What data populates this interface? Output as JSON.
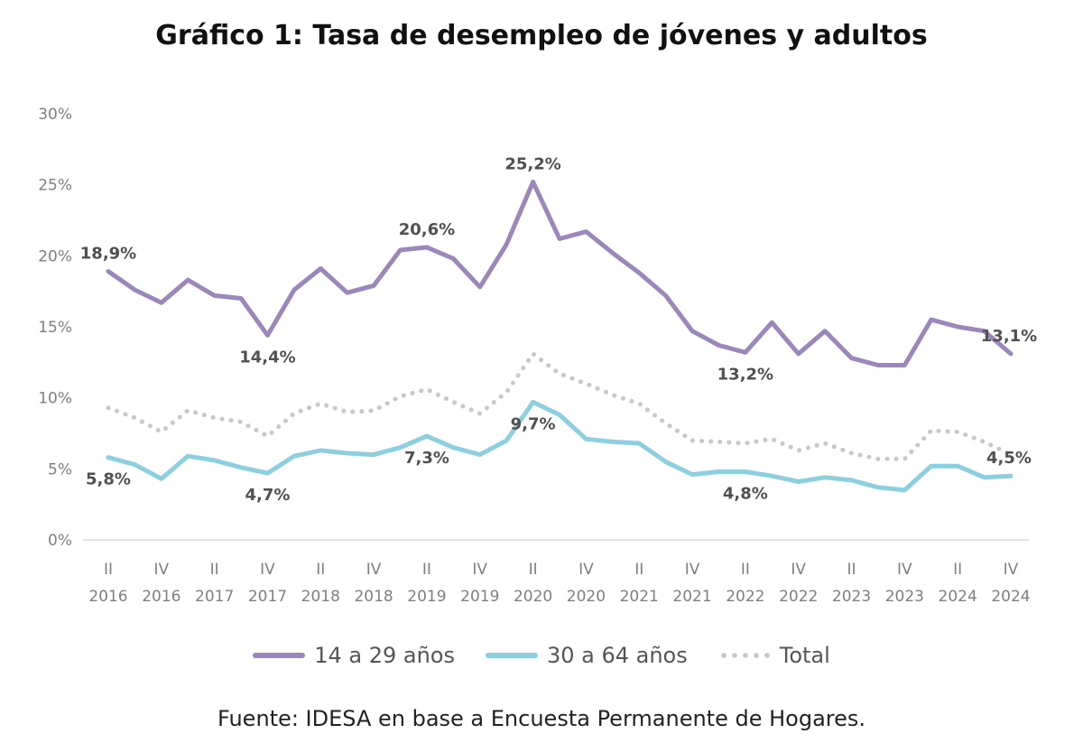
{
  "chart_data": {
    "type": "line",
    "title": "Gráfico 1: Tasa de desempleo de jóvenes y adultos",
    "xlabel": "",
    "ylabel": "",
    "ylim": [
      0,
      30
    ],
    "yticks": [
      "0%",
      "5%",
      "10%",
      "15%",
      "20%",
      "25%",
      "30%"
    ],
    "ytick_values": [
      0,
      5,
      10,
      15,
      20,
      25,
      30
    ],
    "x": [
      "II 2016",
      "III 2016",
      "IV 2016",
      "I 2017",
      "II 2017",
      "III 2017",
      "IV 2017",
      "I 2018",
      "II 2018",
      "III 2018",
      "IV 2018",
      "I 2019",
      "II 2019",
      "III 2019",
      "IV 2019",
      "I 2020",
      "II 2020",
      "III 2020",
      "IV 2020",
      "I 2021",
      "II 2021",
      "III 2021",
      "IV 2021",
      "I 2022",
      "II 2022",
      "III 2022",
      "IV 2022",
      "I 2023",
      "II 2023",
      "III 2023",
      "IV 2023",
      "I 2024",
      "II 2024",
      "III 2024",
      "IV 2024"
    ],
    "xticks": [
      {
        "idx": 0,
        "q": "II",
        "year": "2016"
      },
      {
        "idx": 2,
        "q": "IV",
        "year": "2016"
      },
      {
        "idx": 4,
        "q": "II",
        "year": "2017"
      },
      {
        "idx": 6,
        "q": "IV",
        "year": "2017"
      },
      {
        "idx": 8,
        "q": "II",
        "year": "2018"
      },
      {
        "idx": 10,
        "q": "IV",
        "year": "2018"
      },
      {
        "idx": 12,
        "q": "II",
        "year": "2019"
      },
      {
        "idx": 14,
        "q": "IV",
        "year": "2019"
      },
      {
        "idx": 16,
        "q": "II",
        "year": "2020"
      },
      {
        "idx": 18,
        "q": "IV",
        "year": "2020"
      },
      {
        "idx": 20,
        "q": "II",
        "year": "2021"
      },
      {
        "idx": 22,
        "q": "IV",
        "year": "2021"
      },
      {
        "idx": 24,
        "q": "II",
        "year": "2022"
      },
      {
        "idx": 26,
        "q": "IV",
        "year": "2022"
      },
      {
        "idx": 28,
        "q": "II",
        "year": "2023"
      },
      {
        "idx": 30,
        "q": "IV",
        "year": "2023"
      },
      {
        "idx": 32,
        "q": "II",
        "year": "2024"
      },
      {
        "idx": 34,
        "q": "IV",
        "year": "2024"
      }
    ],
    "series": [
      {
        "name": "14 a 29 años",
        "color": "#9b87b9",
        "style": "solid",
        "values": [
          18.9,
          17.6,
          16.7,
          18.3,
          17.2,
          17.0,
          14.4,
          17.6,
          19.1,
          17.4,
          17.9,
          20.4,
          20.6,
          19.8,
          17.8,
          20.8,
          25.2,
          21.2,
          21.7,
          20.2,
          18.8,
          17.2,
          14.7,
          13.7,
          13.2,
          15.3,
          13.1,
          14.7,
          12.8,
          12.3,
          12.3,
          15.5,
          15.0,
          14.7,
          13.1
        ]
      },
      {
        "name": "30 a 64 años",
        "color": "#8ccfdf",
        "style": "solid",
        "values": [
          5.8,
          5.3,
          4.3,
          5.9,
          5.6,
          5.1,
          4.7,
          5.9,
          6.3,
          6.1,
          6.0,
          6.5,
          7.3,
          6.5,
          6.0,
          7.0,
          9.7,
          8.8,
          7.1,
          6.9,
          6.8,
          5.5,
          4.6,
          4.8,
          4.8,
          4.5,
          4.1,
          4.4,
          4.2,
          3.7,
          3.5,
          5.2,
          5.2,
          4.4,
          4.5
        ]
      },
      {
        "name": "Total",
        "color": "#c8c8c8",
        "style": "dotted",
        "values": [
          9.3,
          8.6,
          7.6,
          9.1,
          8.6,
          8.3,
          7.3,
          8.9,
          9.6,
          9.0,
          9.1,
          10.1,
          10.6,
          9.7,
          8.9,
          10.4,
          13.1,
          11.7,
          11.0,
          10.2,
          9.6,
          8.2,
          7.0,
          6.9,
          6.8,
          7.1,
          6.3,
          6.8,
          6.1,
          5.7,
          5.7,
          7.7,
          7.6,
          6.9,
          6.0
        ]
      }
    ],
    "annotations": [
      {
        "series": 0,
        "idx": 0,
        "text": "18,9%",
        "pos": "above"
      },
      {
        "series": 0,
        "idx": 6,
        "text": "14,4%",
        "pos": "below"
      },
      {
        "series": 0,
        "idx": 12,
        "text": "20,6%",
        "pos": "above"
      },
      {
        "series": 0,
        "idx": 16,
        "text": "25,2%",
        "pos": "above"
      },
      {
        "series": 0,
        "idx": 24,
        "text": "13,2%",
        "pos": "below"
      },
      {
        "series": 0,
        "idx": 34,
        "text": "13,1%",
        "pos": "above"
      },
      {
        "series": 1,
        "idx": 0,
        "text": "5,8%",
        "pos": "below"
      },
      {
        "series": 1,
        "idx": 6,
        "text": "4,7%",
        "pos": "below"
      },
      {
        "series": 1,
        "idx": 12,
        "text": "7,3%",
        "pos": "below"
      },
      {
        "series": 1,
        "idx": 16,
        "text": "9,7%",
        "pos": "below"
      },
      {
        "series": 1,
        "idx": 24,
        "text": "4,8%",
        "pos": "below"
      },
      {
        "series": 1,
        "idx": 34,
        "text": "4,5%",
        "pos": "above"
      }
    ],
    "grid": false,
    "legend": "bottom"
  },
  "legend": {
    "items": [
      {
        "label": "14 a 29 años",
        "color": "#9b87b9",
        "style": "solid"
      },
      {
        "label": "30 a 64 años",
        "color": "#8ccfdf",
        "style": "solid"
      },
      {
        "label": "Total",
        "color": "#c8c8c8",
        "style": "dotted"
      }
    ]
  },
  "source": "Fuente: IDESA en base a Encuesta Permanente de Hogares."
}
